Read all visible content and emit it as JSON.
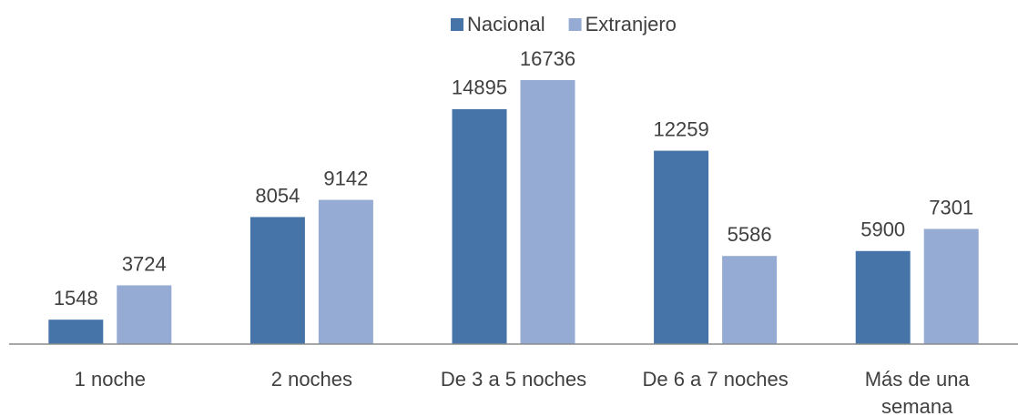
{
  "chart_data": {
    "type": "bar",
    "categories": [
      "1 noche",
      "2 noches",
      "De 3 a 5 noches",
      "De 6 a 7 noches",
      "Más de una semana"
    ],
    "series": [
      {
        "name": "Nacional",
        "color": "#4674a8",
        "values": [
          1548,
          8054,
          14895,
          12259,
          5900
        ]
      },
      {
        "name": "Extranjero",
        "color": "#95abd3",
        "values": [
          3724,
          9142,
          16736,
          5586,
          7301
        ]
      }
    ],
    "legend": "top"
  }
}
